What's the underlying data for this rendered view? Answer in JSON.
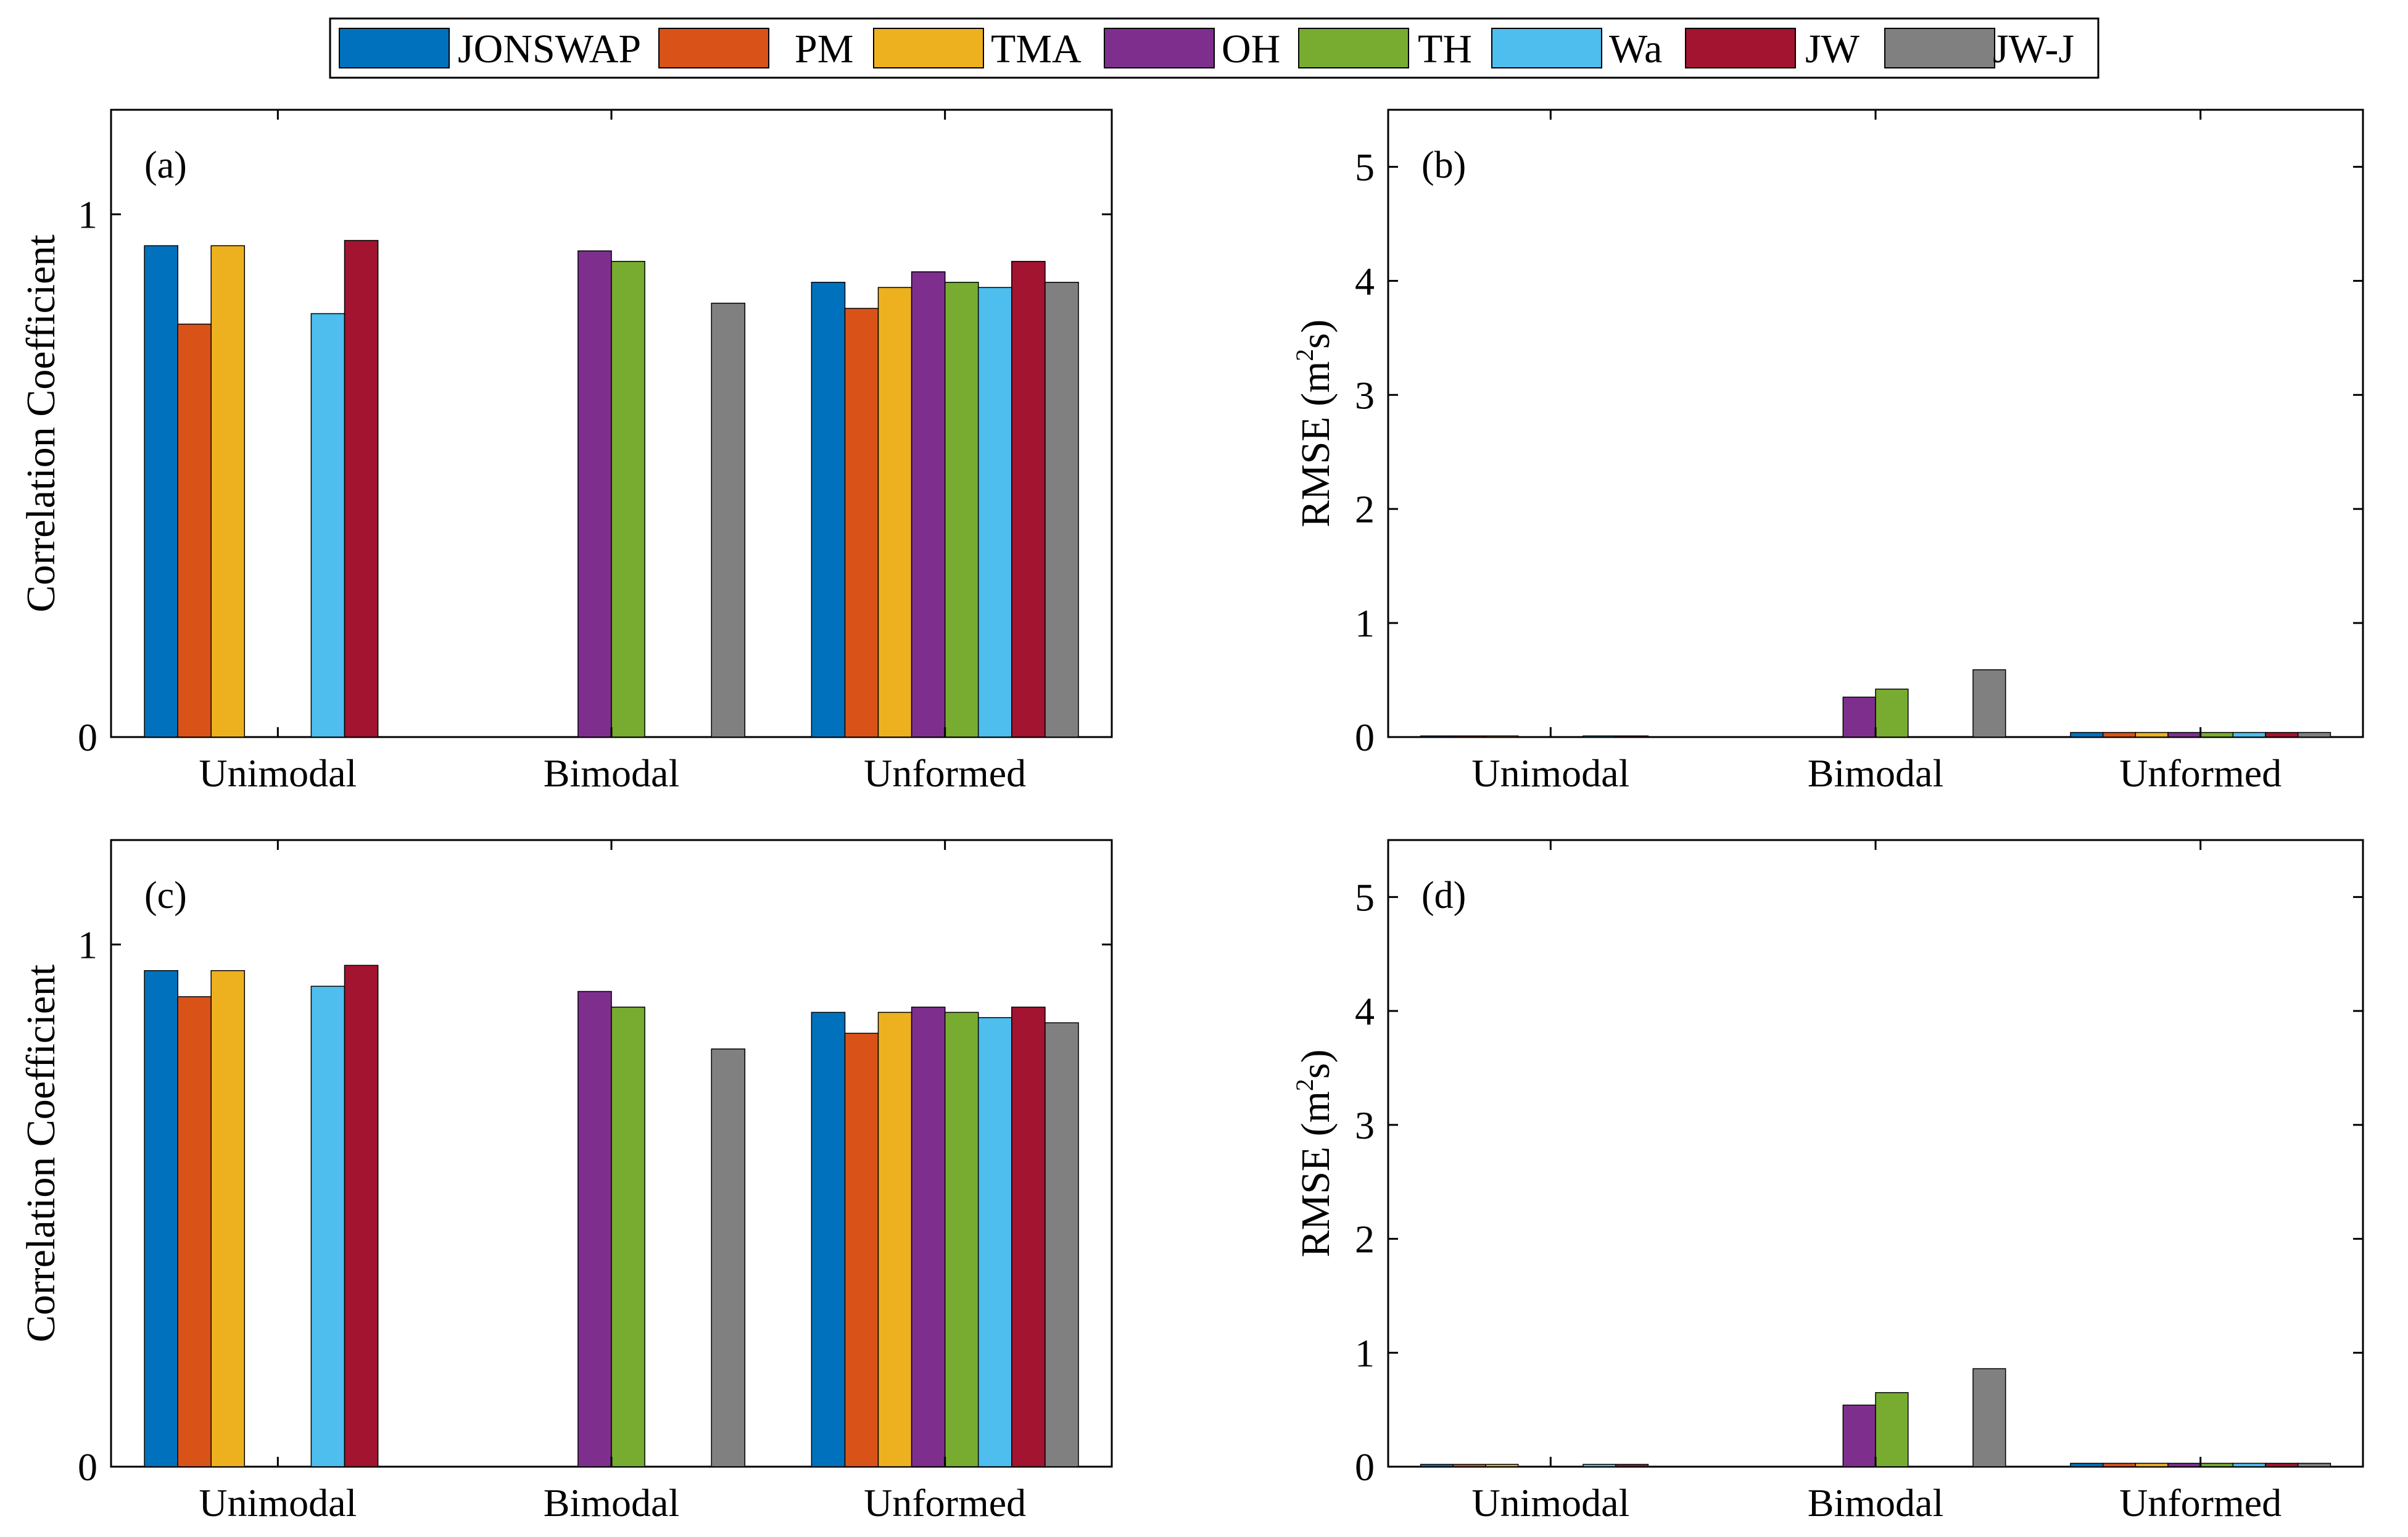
{
  "colors": {
    "JONSWAP": "#0072BD",
    "PM": "#D95319",
    "TMA": "#EDB120",
    "OH": "#7E2F8E",
    "TH": "#77AC30",
    "Wa": "#4DBEEE",
    "JW": "#A2142F",
    "JW-J": "#808080"
  },
  "legend": {
    "entries": [
      "JONSWAP",
      "PM",
      "TMA",
      "OH",
      "TH",
      "Wa",
      "JW",
      "JW-J"
    ]
  },
  "chart_data": [
    {
      "type": "bar",
      "panel_label": "(a)",
      "ylabel": "Correlation Coefficient",
      "ylim": [
        0,
        1.2
      ],
      "yticks": [
        "0",
        "1"
      ],
      "categories": [
        "Unimodal",
        "Bimodal",
        "Unformed"
      ],
      "series": [
        {
          "name": "JONSWAP",
          "values": [
            0.94,
            null,
            0.87
          ]
        },
        {
          "name": "PM",
          "values": [
            0.79,
            null,
            0.82
          ]
        },
        {
          "name": "TMA",
          "values": [
            0.94,
            null,
            0.86
          ]
        },
        {
          "name": "OH",
          "values": [
            null,
            0.93,
            0.89
          ]
        },
        {
          "name": "TH",
          "values": [
            null,
            0.91,
            0.87
          ]
        },
        {
          "name": "Wa",
          "values": [
            0.81,
            null,
            0.86
          ]
        },
        {
          "name": "JW",
          "values": [
            0.95,
            null,
            0.91
          ]
        },
        {
          "name": "JW-J",
          "values": [
            null,
            0.83,
            0.87
          ]
        }
      ]
    },
    {
      "type": "bar",
      "panel_label": "(b)",
      "ylabel": "RMSE (m",
      "ylabel_sup": "2",
      "ylabel_tail": "s)",
      "ylim": [
        0,
        5.5
      ],
      "yticks": [
        "0",
        "1",
        "2",
        "3",
        "4",
        "5"
      ],
      "categories": [
        "Unimodal",
        "Bimodal",
        "Unformed"
      ],
      "series": [
        {
          "name": "JONSWAP",
          "values": [
            0.01,
            null,
            0.04
          ]
        },
        {
          "name": "PM",
          "values": [
            0.01,
            null,
            0.04
          ]
        },
        {
          "name": "TMA",
          "values": [
            0.01,
            null,
            0.04
          ]
        },
        {
          "name": "OH",
          "values": [
            null,
            0.35,
            0.04
          ]
        },
        {
          "name": "TH",
          "values": [
            null,
            0.42,
            0.04
          ]
        },
        {
          "name": "Wa",
          "values": [
            0.01,
            null,
            0.04
          ]
        },
        {
          "name": "JW",
          "values": [
            0.01,
            null,
            0.04
          ]
        },
        {
          "name": "JW-J",
          "values": [
            null,
            0.59,
            0.04
          ]
        }
      ]
    },
    {
      "type": "bar",
      "panel_label": "(c)",
      "ylabel": "Correlation Coefficient",
      "ylim": [
        0,
        1.2
      ],
      "yticks": [
        "0",
        "1"
      ],
      "categories": [
        "Unimodal",
        "Bimodal",
        "Unformed"
      ],
      "series": [
        {
          "name": "JONSWAP",
          "values": [
            0.95,
            null,
            0.87
          ]
        },
        {
          "name": "PM",
          "values": [
            0.9,
            null,
            0.83
          ]
        },
        {
          "name": "TMA",
          "values": [
            0.95,
            null,
            0.87
          ]
        },
        {
          "name": "OH",
          "values": [
            null,
            0.91,
            0.88
          ]
        },
        {
          "name": "TH",
          "values": [
            null,
            0.88,
            0.87
          ]
        },
        {
          "name": "Wa",
          "values": [
            0.92,
            null,
            0.86
          ]
        },
        {
          "name": "JW",
          "values": [
            0.96,
            null,
            0.88
          ]
        },
        {
          "name": "JW-J",
          "values": [
            null,
            0.8,
            0.85
          ]
        }
      ]
    },
    {
      "type": "bar",
      "panel_label": "(d)",
      "ylabel": "RMSE (m",
      "ylabel_sup": "2",
      "ylabel_tail": "s)",
      "ylim": [
        0,
        5.5
      ],
      "yticks": [
        "0",
        "1",
        "2",
        "3",
        "4",
        "5"
      ],
      "categories": [
        "Unimodal",
        "Bimodal",
        "Unformed"
      ],
      "series": [
        {
          "name": "JONSWAP",
          "values": [
            0.02,
            null,
            0.03
          ]
        },
        {
          "name": "PM",
          "values": [
            0.02,
            null,
            0.03
          ]
        },
        {
          "name": "TMA",
          "values": [
            0.02,
            null,
            0.03
          ]
        },
        {
          "name": "OH",
          "values": [
            null,
            0.54,
            0.03
          ]
        },
        {
          "name": "TH",
          "values": [
            null,
            0.65,
            0.03
          ]
        },
        {
          "name": "Wa",
          "values": [
            0.02,
            null,
            0.03
          ]
        },
        {
          "name": "JW",
          "values": [
            0.02,
            null,
            0.03
          ]
        },
        {
          "name": "JW-J",
          "values": [
            null,
            0.86,
            0.03
          ]
        }
      ]
    }
  ]
}
